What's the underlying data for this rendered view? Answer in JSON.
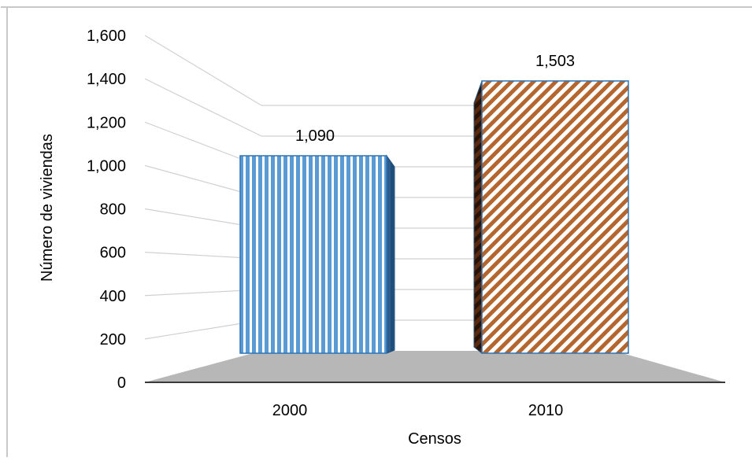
{
  "chart_data": {
    "type": "bar",
    "style": "3d-perspective",
    "categories": [
      "2000",
      "2010"
    ],
    "values": [
      1090,
      1503
    ],
    "data_labels": [
      "1,090",
      "1,503"
    ],
    "title": "",
    "xlabel": "Censos",
    "ylabel": "Número de viviendas",
    "ylim": [
      0,
      1600
    ],
    "yticks": [
      "0",
      "200",
      "400",
      "600",
      "800",
      "1,000",
      "1,200",
      "1,400",
      "1,600"
    ],
    "grid": true,
    "legend": "none",
    "bar_patterns": [
      "vertical-stripes",
      "diagonal-stripes"
    ],
    "colors": {
      "bar_2000": "#5b9bd5",
      "bar_2010": "#c0703a",
      "floor": "#b7b7b7",
      "gridline": "#d0d0d0",
      "frame": "#c8c8c8"
    }
  }
}
